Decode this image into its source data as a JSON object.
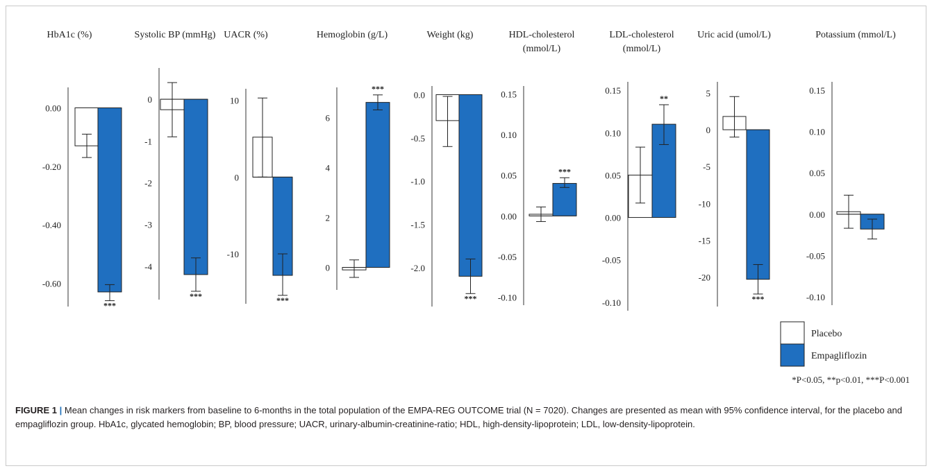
{
  "chart_data": [
    {
      "type": "bar",
      "title": "HbA1c (%)",
      "ylim": [
        -0.68,
        0.07
      ],
      "ticks": [
        0,
        -0.2,
        -0.4,
        -0.6
      ],
      "tick_labels": [
        "0.00",
        "-0.20",
        "-0.40",
        "-0.60"
      ],
      "series": [
        {
          "name": "Placebo",
          "value": -0.13,
          "ci": [
            -0.17,
            -0.09
          ]
        },
        {
          "name": "Empagliflozin",
          "value": -0.63,
          "ci": [
            -0.66,
            -0.605
          ]
        }
      ],
      "significance": "***"
    },
    {
      "type": "bar",
      "title": "Systolic BP (mmHg)",
      "ylim": [
        -4.8,
        0.75
      ],
      "ticks": [
        0,
        -1,
        -2,
        -3,
        -4
      ],
      "tick_labels": [
        "0",
        "-1",
        "-2",
        "-3",
        "-4"
      ],
      "series": [
        {
          "name": "Placebo",
          "value": -0.25,
          "ci": [
            -0.9,
            0.4
          ]
        },
        {
          "name": "Empagliflozin",
          "value": -4.2,
          "ci": [
            -4.6,
            -3.8
          ]
        }
      ],
      "significance": "***"
    },
    {
      "type": "bar",
      "title": "UACR (%)",
      "ylim": [
        -16.5,
        11.5
      ],
      "ticks": [
        10,
        0,
        -10
      ],
      "tick_labels": [
        "10",
        "0",
        "-10"
      ],
      "series": [
        {
          "name": "Placebo",
          "value": 5.2,
          "ci": [
            0,
            10.3
          ]
        },
        {
          "name": "Empagliflozin",
          "value": -12.8,
          "ci": [
            -15.4,
            -10
          ]
        }
      ],
      "significance": "***"
    },
    {
      "type": "bar",
      "title": "Hemoglobin (g/L)",
      "ylim": [
        -0.9,
        7.2
      ],
      "ticks": [
        6,
        4,
        2,
        0
      ],
      "tick_labels": [
        "6",
        "4",
        "2",
        "0"
      ],
      "series": [
        {
          "name": "Placebo",
          "value": -0.1,
          "ci": [
            -0.4,
            0.3
          ]
        },
        {
          "name": "Empagliflozin",
          "value": 6.6,
          "ci": [
            6.3,
            6.9
          ]
        }
      ],
      "significance": "***"
    },
    {
      "type": "bar",
      "title": "Weight (kg)",
      "ylim": [
        -2.45,
        0.1
      ],
      "ticks": [
        0,
        -0.5,
        -1,
        -1.5,
        -2
      ],
      "tick_labels": [
        "0.0",
        "-0.5",
        "-1.0",
        "-1.5",
        "-2.0"
      ],
      "series": [
        {
          "name": "Placebo",
          "value": -0.3,
          "ci": [
            -0.6,
            -0.02
          ]
        },
        {
          "name": "Empagliflozin",
          "value": -2.1,
          "ci": [
            -2.3,
            -1.9
          ]
        }
      ],
      "significance": "***"
    },
    {
      "type": "bar",
      "title": "HDL-cholesterol (mmol/L)",
      "ylim": [
        -0.11,
        0.16
      ],
      "ticks": [
        0.15,
        0.1,
        0.05,
        0,
        -0.05,
        -0.1
      ],
      "tick_labels": [
        "0.15",
        "0.10",
        "0.05",
        "0.00",
        "-0.05",
        "-0.10"
      ],
      "series": [
        {
          "name": "Placebo",
          "value": 0.002,
          "ci": [
            -0.007,
            0.011
          ]
        },
        {
          "name": "Empagliflozin",
          "value": 0.04,
          "ci": [
            0.035,
            0.047
          ]
        }
      ],
      "significance": "***"
    },
    {
      "type": "bar",
      "title": "LDL-cholesterol (mmol/L)",
      "ylim": [
        -0.11,
        0.16
      ],
      "ticks": [
        0.15,
        0.1,
        0.05,
        0,
        -0.05,
        -0.1
      ],
      "tick_labels": [
        "0.15",
        "0.10",
        "0.05",
        "0.00",
        "-0.05",
        "-0.10"
      ],
      "series": [
        {
          "name": "Placebo",
          "value": 0.05,
          "ci": [
            0.017,
            0.083
          ]
        },
        {
          "name": "Empagliflozin",
          "value": 0.11,
          "ci": [
            0.086,
            0.133
          ]
        }
      ],
      "significance": "**"
    },
    {
      "type": "bar",
      "title": "Uric acid (umol/L)",
      "ylim": [
        -24,
        6.5
      ],
      "ticks": [
        5,
        0,
        -5,
        -10,
        -15,
        -20
      ],
      "tick_labels": [
        "5",
        "0",
        "-5",
        "-10",
        "-15",
        "-20"
      ],
      "series": [
        {
          "name": "Placebo",
          "value": 1.8,
          "ci": [
            -1,
            4.5
          ]
        },
        {
          "name": "Empagliflozin",
          "value": -20.3,
          "ci": [
            -22.3,
            -18.3
          ]
        }
      ],
      "significance": "***"
    },
    {
      "type": "bar",
      "title": "Potassium (mmol/L)",
      "ylim": [
        -0.11,
        0.16
      ],
      "ticks": [
        0.15,
        0.1,
        0.05,
        0,
        -0.05,
        -0.1
      ],
      "tick_labels": [
        "0.15",
        "0.10",
        "0.05",
        "0.00",
        "-0.05",
        "-0.10"
      ],
      "series": [
        {
          "name": "Placebo",
          "value": 0.003,
          "ci": [
            -0.017,
            0.023
          ]
        },
        {
          "name": "Empagliflozin",
          "value": -0.018,
          "ci": [
            -0.03,
            -0.006
          ]
        }
      ],
      "significance": ""
    }
  ],
  "legend": {
    "placement": "bottom-right",
    "items": [
      {
        "label": "Placebo",
        "color": "#ffffff"
      },
      {
        "label": "Empagliflozin",
        "color": "#1f6fc0"
      }
    ]
  },
  "significance_note": "*P<0.05, **p<0.01, ***P<0.001",
  "colors": {
    "placebo": "#ffffff",
    "empagliflozin": "#1f6fc0",
    "stroke": "#222222"
  },
  "caption": {
    "lead": "FIGURE 1",
    "separator": "|",
    "text": "Mean changes in risk markers from baseline to 6-months in the total population of the EMPA-REG OUTCOME trial (N = 7020). Changes are presented as mean with 95% confidence interval, for the placebo and empagliflozin group. HbA1c, glycated hemoglobin; BP, blood pressure; UACR, urinary-albumin-creatinine-ratio; HDL, high-density-lipoprotein; LDL, low-density-lipoprotein."
  }
}
